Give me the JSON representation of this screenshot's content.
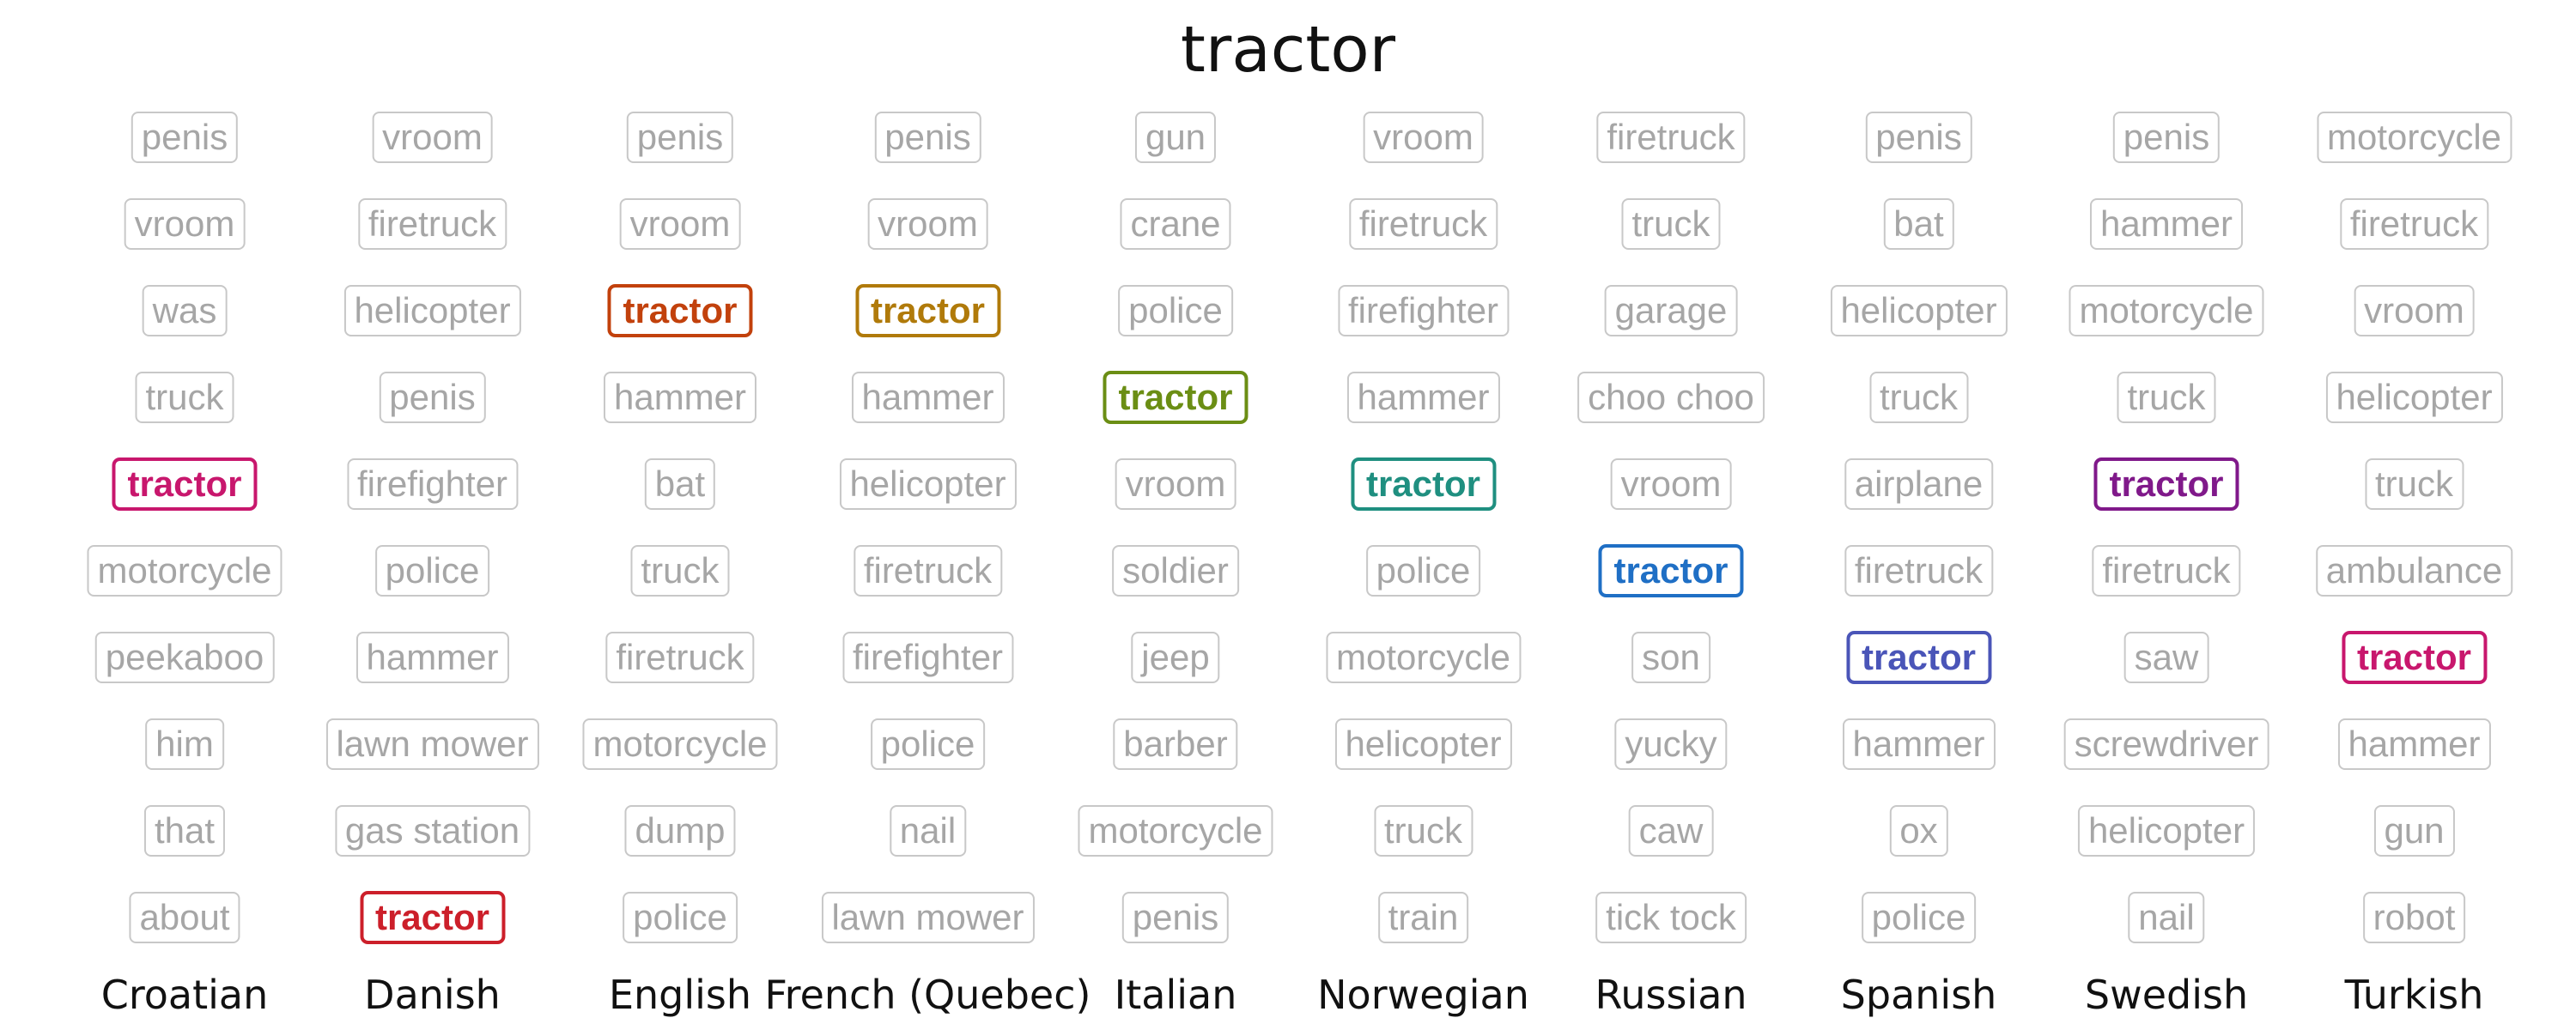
{
  "title": "tractor",
  "target_word": "tractor",
  "columns": [
    {
      "language": "Croatian",
      "highlight_color": "#c8176d",
      "words": [
        "penis",
        "vroom",
        "was",
        "truck",
        "tractor",
        "motorcycle",
        "peekaboo",
        "him",
        "that",
        "about"
      ]
    },
    {
      "language": "Danish",
      "highlight_color": "#cc1f2a",
      "words": [
        "vroom",
        "firetruck",
        "helicopter",
        "penis",
        "firefighter",
        "police",
        "hammer",
        "lawn mower",
        "gas station",
        "tractor"
      ]
    },
    {
      "language": "English",
      "highlight_color": "#c2410c",
      "words": [
        "penis",
        "vroom",
        "tractor",
        "hammer",
        "bat",
        "truck",
        "firetruck",
        "motorcycle",
        "dump",
        "police"
      ]
    },
    {
      "language": "French (Quebec)",
      "highlight_color": "#b07a0a",
      "words": [
        "penis",
        "vroom",
        "tractor",
        "hammer",
        "helicopter",
        "firetruck",
        "firefighter",
        "police",
        "nail",
        "lawn mower"
      ]
    },
    {
      "language": "Italian",
      "highlight_color": "#6b8e14",
      "words": [
        "gun",
        "crane",
        "police",
        "tractor",
        "vroom",
        "soldier",
        "jeep",
        "barber",
        "motorcycle",
        "penis"
      ]
    },
    {
      "language": "Norwegian",
      "highlight_color": "#1f8f80",
      "words": [
        "vroom",
        "firetruck",
        "firefighter",
        "hammer",
        "tractor",
        "police",
        "motorcycle",
        "helicopter",
        "truck",
        "train"
      ]
    },
    {
      "language": "Russian",
      "highlight_color": "#1f6fc5",
      "words": [
        "firetruck",
        "truck",
        "garage",
        "choo choo",
        "vroom",
        "tractor",
        "son",
        "yucky",
        "caw",
        "tick tock"
      ]
    },
    {
      "language": "Spanish",
      "highlight_color": "#4a55b8",
      "words": [
        "penis",
        "bat",
        "helicopter",
        "truck",
        "airplane",
        "firetruck",
        "tractor",
        "hammer",
        "ox",
        "police"
      ]
    },
    {
      "language": "Swedish",
      "highlight_color": "#80198a",
      "words": [
        "penis",
        "hammer",
        "motorcycle",
        "truck",
        "tractor",
        "firetruck",
        "saw",
        "screwdriver",
        "helicopter",
        "nail"
      ]
    },
    {
      "language": "Turkish",
      "highlight_color": "#c8176d",
      "words": [
        "motorcycle",
        "firetruck",
        "vroom",
        "helicopter",
        "truck",
        "ambulance",
        "tractor",
        "hammer",
        "gun",
        "robot"
      ]
    }
  ]
}
